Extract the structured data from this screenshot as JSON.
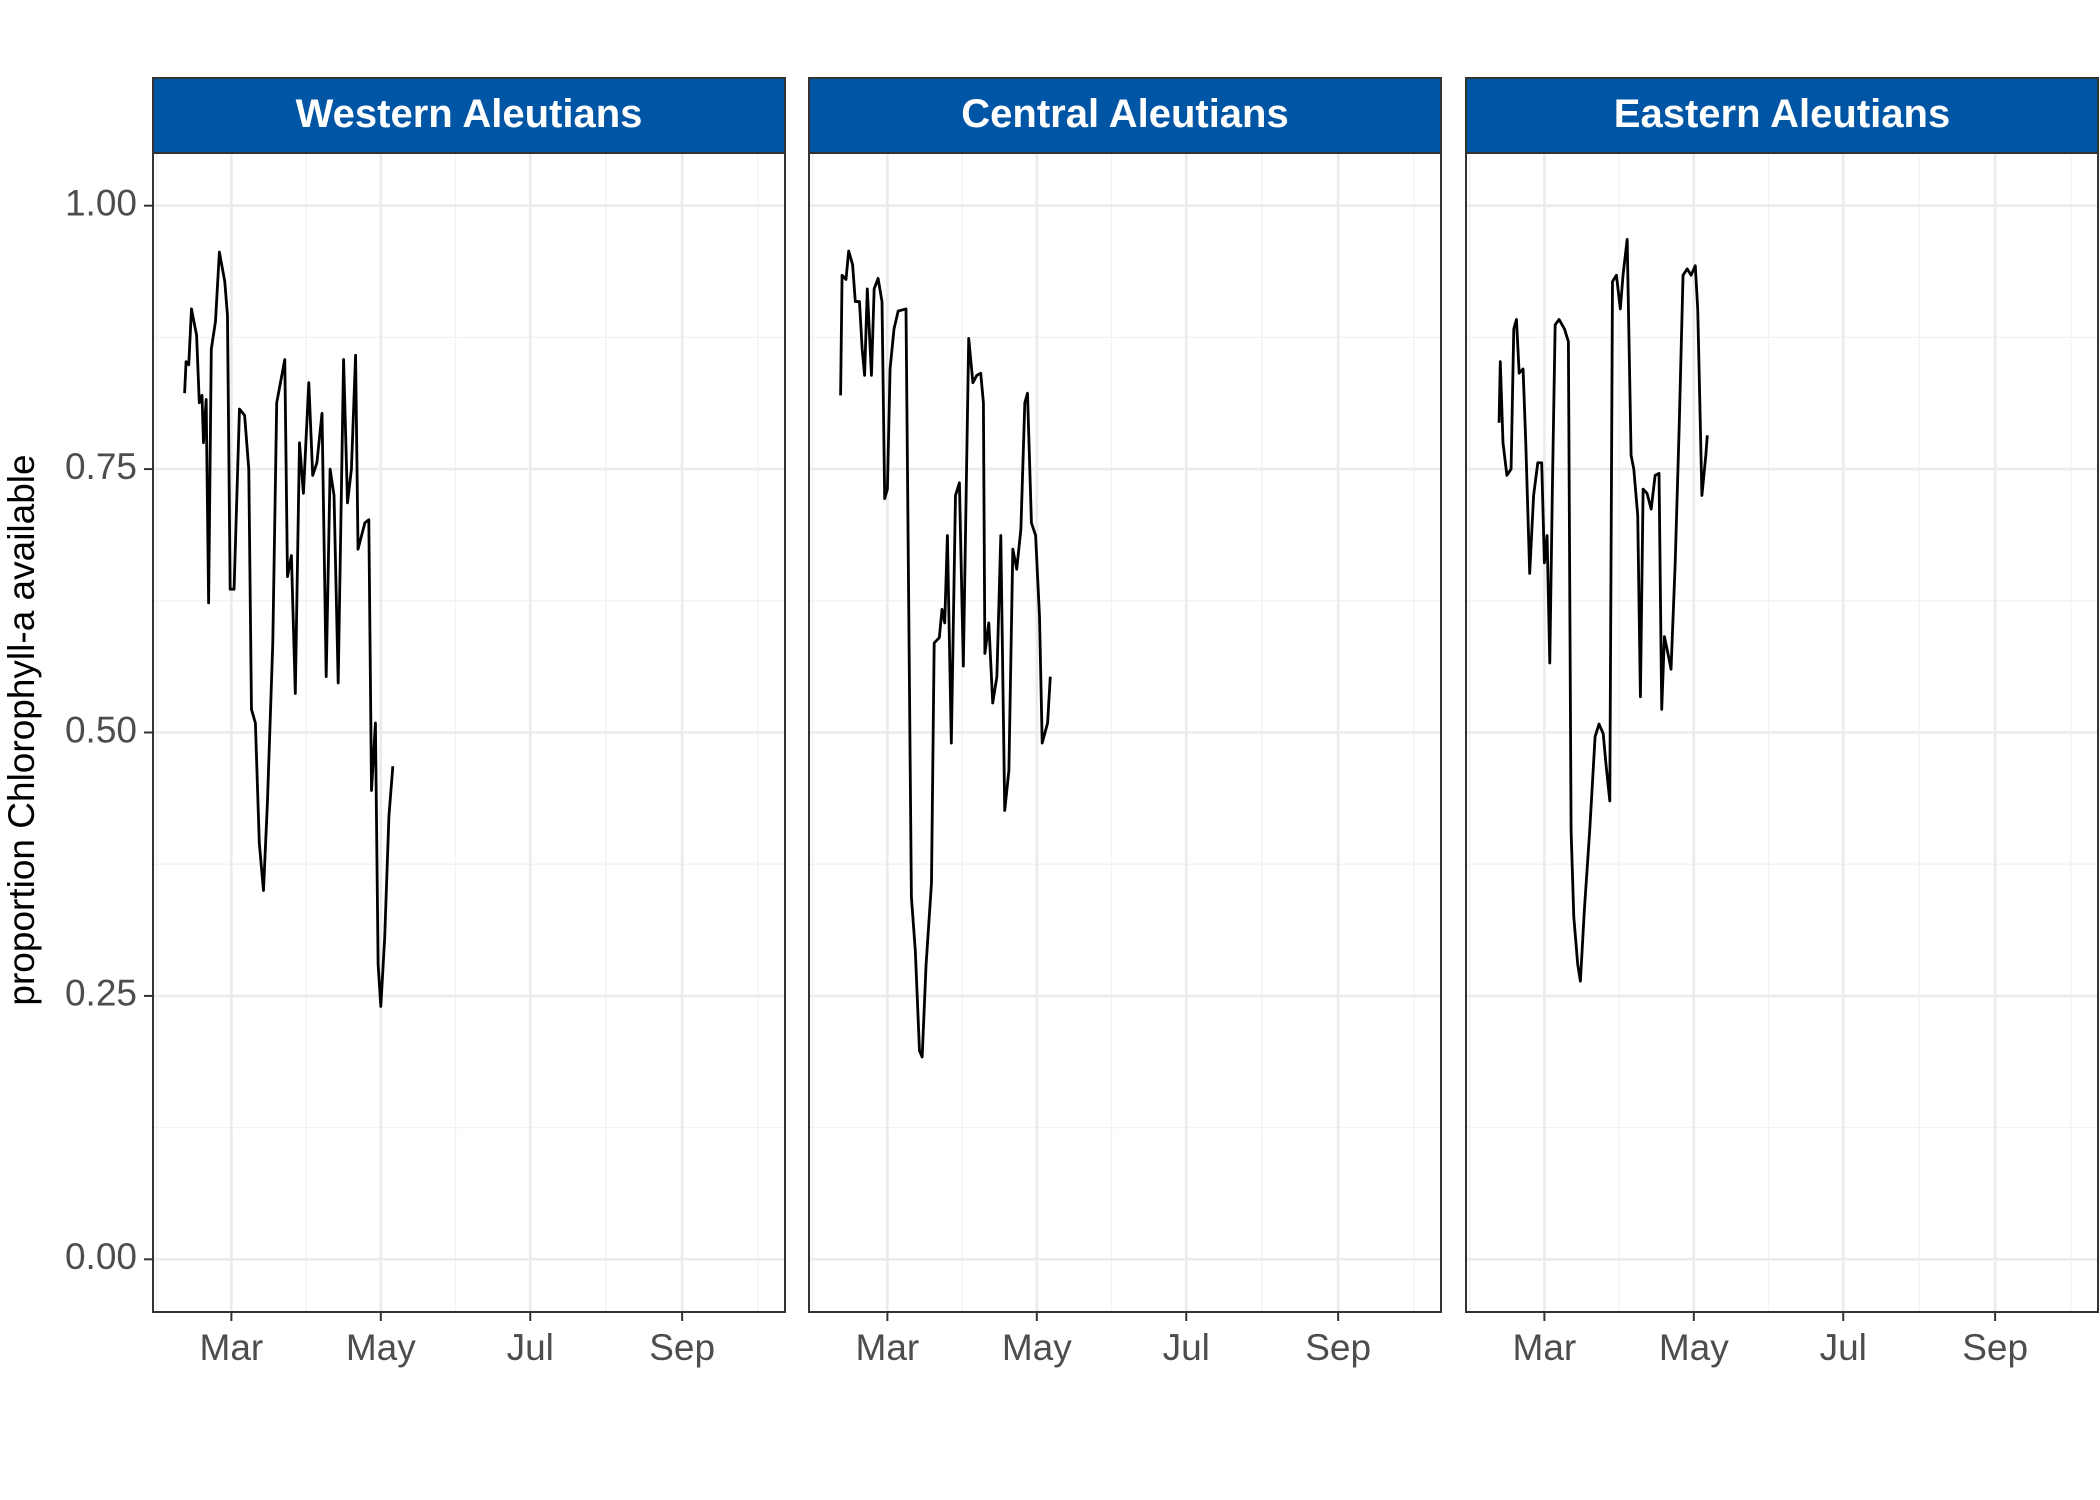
{
  "chart_data": [
    {
      "type": "line",
      "title": "Western Aleutians",
      "ylabel": "proportion Chlorophyll-a available",
      "x": [
        40.9,
        41.5,
        42.6,
        43.7,
        45.8,
        46.9,
        48.0,
        48.6,
        49.7,
        50.7,
        51.8,
        53.5,
        55.1,
        57.3,
        58.4,
        59.5,
        61.1,
        63.3,
        65.4,
        67.1,
        68.2,
        69.8,
        71.4,
        73.1,
        74.7,
        76.9,
        78.5,
        81.8,
        82.9,
        84.5,
        86.1,
        87.8,
        89.4,
        91.6,
        93.2,
        94.9,
        97.0,
        98.7,
        100.3,
        101.9,
        103.6,
        105.8,
        107.4,
        109.0,
        110.7,
        111.7,
        114.5,
        116.1,
        117.2,
        118.8,
        119.9,
        121.0,
        122.6,
        124.3,
        125.9
      ],
      "values": [
        0.822,
        0.852,
        0.849,
        0.902,
        0.877,
        0.813,
        0.82,
        0.775,
        0.816,
        0.623,
        0.864,
        0.89,
        0.956,
        0.928,
        0.896,
        0.636,
        0.636,
        0.807,
        0.801,
        0.75,
        0.522,
        0.509,
        0.395,
        0.35,
        0.433,
        0.585,
        0.813,
        0.854,
        0.648,
        0.668,
        0.537,
        0.775,
        0.727,
        0.832,
        0.744,
        0.756,
        0.803,
        0.553,
        0.75,
        0.725,
        0.547,
        0.854,
        0.718,
        0.75,
        0.858,
        0.674,
        0.699,
        0.702,
        0.445,
        0.509,
        0.28,
        0.24,
        0.306,
        0.42,
        0.468
      ],
      "color": "#000000",
      "strip_color": "#0055a5",
      "xlim": [
        28,
        286
      ],
      "xticks": [
        {
          "value": 60,
          "label": "Mar"
        },
        {
          "value": 121,
          "label": "May"
        },
        {
          "value": 182,
          "label": "Jul"
        },
        {
          "value": 244,
          "label": "Sep"
        }
      ],
      "ylim": [
        -0.05,
        1.05
      ],
      "yticks": [
        {
          "value": 0,
          "label": "0.00"
        },
        {
          "value": 0.25,
          "label": "0.25"
        },
        {
          "value": 0.5,
          "label": "0.50"
        },
        {
          "value": 0.75,
          "label": "0.75"
        },
        {
          "value": 1,
          "label": "1.00"
        }
      ],
      "grid": true
    },
    {
      "type": "line",
      "title": "Central Aleutians",
      "x": [
        40.9,
        41.5,
        43.1,
        44.2,
        45.8,
        46.9,
        48.6,
        49.7,
        50.7,
        51.8,
        53.5,
        54.6,
        56.2,
        57.8,
        58.9,
        60,
        61.1,
        62.7,
        64.4,
        67.6,
        69.8,
        71.4,
        73.1,
        74.2,
        75.8,
        78.0,
        79.1,
        81.2,
        82.3,
        83.4,
        84.5,
        86.1,
        87.8,
        89.4,
        91.0,
        93.2,
        94.9,
        96.5,
        98.1,
        99.2,
        99.8,
        101.4,
        103.0,
        104.7,
        106.3,
        107.9,
        109.6,
        111.2,
        112.8,
        114.5,
        116.1,
        117.2,
        118.8,
        120.5,
        122.1,
        123.2,
        125.4,
        126.5
      ],
      "values": [
        0.82,
        0.934,
        0.93,
        0.957,
        0.944,
        0.909,
        0.909,
        0.864,
        0.839,
        0.921,
        0.839,
        0.921,
        0.931,
        0.909,
        0.722,
        0.731,
        0.845,
        0.883,
        0.9,
        0.902,
        0.344,
        0.293,
        0.198,
        0.192,
        0.28,
        0.357,
        0.585,
        0.59,
        0.617,
        0.604,
        0.687,
        0.49,
        0.725,
        0.737,
        0.563,
        0.874,
        0.832,
        0.839,
        0.841,
        0.813,
        0.575,
        0.604,
        0.528,
        0.553,
        0.687,
        0.426,
        0.464,
        0.674,
        0.655,
        0.693,
        0.813,
        0.822,
        0.699,
        0.687,
        0.61,
        0.49,
        0.509,
        0.553
      ],
      "color": "#000000",
      "strip_color": "#0055a5",
      "xlim": [
        28,
        286
      ],
      "xticks": [
        {
          "value": 60,
          "label": "Mar"
        },
        {
          "value": 121,
          "label": "May"
        },
        {
          "value": 182,
          "label": "Jul"
        },
        {
          "value": 244,
          "label": "Sep"
        }
      ],
      "ylim": [
        -0.05,
        1.05
      ],
      "yticks": [
        0,
        0.25,
        0.5,
        0.75,
        1
      ],
      "grid": true
    },
    {
      "type": "line",
      "title": "Eastern Aleutians",
      "x": [
        41.5,
        42.0,
        43.1,
        44.7,
        46.4,
        47.5,
        48.6,
        49.7,
        51.3,
        52.4,
        54.0,
        55.6,
        57.3,
        58.9,
        60,
        61.1,
        62.2,
        63.3,
        64.4,
        66.0,
        68.2,
        69.8,
        70.9,
        72.0,
        73.6,
        74.7,
        76.3,
        78.5,
        80.7,
        82.3,
        84.0,
        85.1,
        86.7,
        87.8,
        89.4,
        91.0,
        92.1,
        93.8,
        95.4,
        96.5,
        98.1,
        99.2,
        100.3,
        101.9,
        103.6,
        105.2,
        106.8,
        107.9,
        109.0,
        110.1,
        111.7,
        113.4,
        115.0,
        116.6,
        118.3,
        119.9,
        121.6,
        122.6,
        124.3,
        125.9,
        126.5
      ],
      "values": [
        0.794,
        0.852,
        0.775,
        0.744,
        0.75,
        0.883,
        0.892,
        0.841,
        0.845,
        0.775,
        0.651,
        0.725,
        0.756,
        0.756,
        0.661,
        0.687,
        0.566,
        0.737,
        0.887,
        0.892,
        0.883,
        0.871,
        0.407,
        0.325,
        0.28,
        0.264,
        0.331,
        0.407,
        0.496,
        0.508,
        0.499,
        0.471,
        0.435,
        0.928,
        0.934,
        0.902,
        0.934,
        0.968,
        0.763,
        0.75,
        0.706,
        0.534,
        0.731,
        0.727,
        0.712,
        0.744,
        0.746,
        0.522,
        0.591,
        0.579,
        0.56,
        0.661,
        0.788,
        0.934,
        0.94,
        0.934,
        0.943,
        0.902,
        0.725,
        0.763,
        0.782
      ],
      "color": "#000000",
      "strip_color": "#0055a5",
      "xlim": [
        28,
        286
      ],
      "xticks": [
        {
          "value": 60,
          "label": "Mar"
        },
        {
          "value": 121,
          "label": "May"
        },
        {
          "value": 182,
          "label": "Jul"
        },
        {
          "value": 244,
          "label": "Sep"
        }
      ],
      "ylim": [
        -0.05,
        1.05
      ],
      "yticks": [
        0,
        0.25,
        0.5,
        0.75,
        1
      ],
      "grid": true
    }
  ]
}
